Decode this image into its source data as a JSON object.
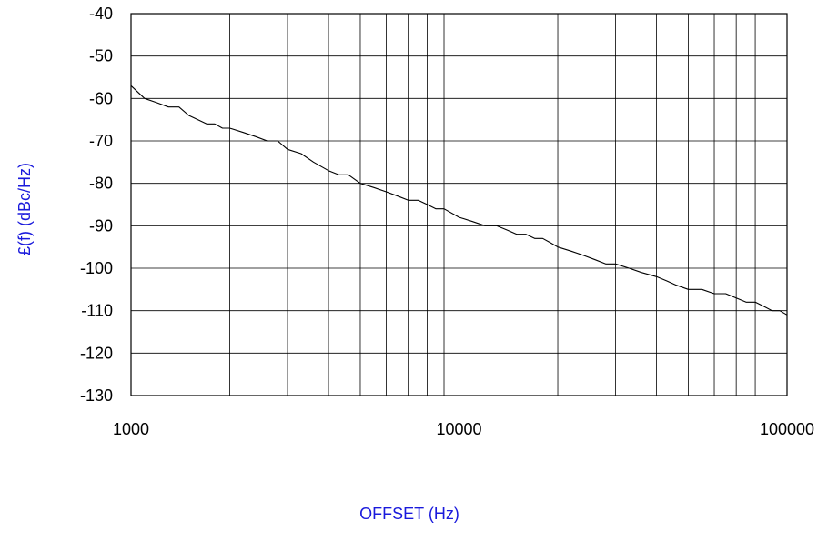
{
  "chart_data": {
    "type": "line",
    "title": "",
    "xlabel": "OFFSET (Hz)",
    "ylabel": "£(f) (dBc/Hz)",
    "x_scale": "log",
    "xlim": [
      1000,
      100000
    ],
    "ylim": [
      -130,
      -40
    ],
    "x_ticks": [
      1000,
      10000,
      100000
    ],
    "x_tick_labels": [
      "1000",
      "10000",
      "100000"
    ],
    "y_ticks": [
      -40,
      -50,
      -60,
      -70,
      -80,
      -90,
      -100,
      -110,
      -120,
      -130
    ],
    "y_tick_labels": [
      "-40",
      "-50",
      "-60",
      "-70",
      "-80",
      "-90",
      "-100",
      "-110",
      "-120",
      "-130"
    ],
    "grid": true,
    "legend": "none",
    "colors": {
      "line": "#000000",
      "axis_title": "#1a1adc",
      "grid": "#000000"
    },
    "series": [
      {
        "x": [
          1000,
          1100,
          1200,
          1300,
          1400,
          1500,
          1600,
          1700,
          1800,
          1900,
          2000,
          2200,
          2400,
          2600,
          2800,
          3000,
          3300,
          3600,
          4000,
          4300,
          4600,
          5000,
          5500,
          6000,
          6500,
          7000,
          7500,
          8000,
          8500,
          9000,
          10000,
          11000,
          12000,
          13000,
          14000,
          15000,
          16000,
          17000,
          18000,
          19000,
          20000,
          22000,
          24000,
          26000,
          28000,
          30000,
          33000,
          36000,
          40000,
          43000,
          46000,
          50000,
          55000,
          60000,
          65000,
          70000,
          75000,
          80000,
          85000,
          90000,
          95000,
          100000
        ],
        "y": [
          -57,
          -60,
          -61,
          -62,
          -62,
          -64,
          -65,
          -66,
          -66,
          -67,
          -67,
          -68,
          -69,
          -70,
          -70,
          -72,
          -73,
          -75,
          -77,
          -78,
          -78,
          -80,
          -81,
          -82,
          -83,
          -84,
          -84,
          -85,
          -86,
          -86,
          -88,
          -89,
          -90,
          -90,
          -91,
          -92,
          -92,
          -93,
          -93,
          -94,
          -95,
          -96,
          -97,
          -98,
          -99,
          -99,
          -100,
          -101,
          -102,
          -103,
          -104,
          -105,
          -105,
          -106,
          -106,
          -107,
          -108,
          -108,
          -109,
          -110,
          -110,
          -111
        ]
      }
    ]
  }
}
